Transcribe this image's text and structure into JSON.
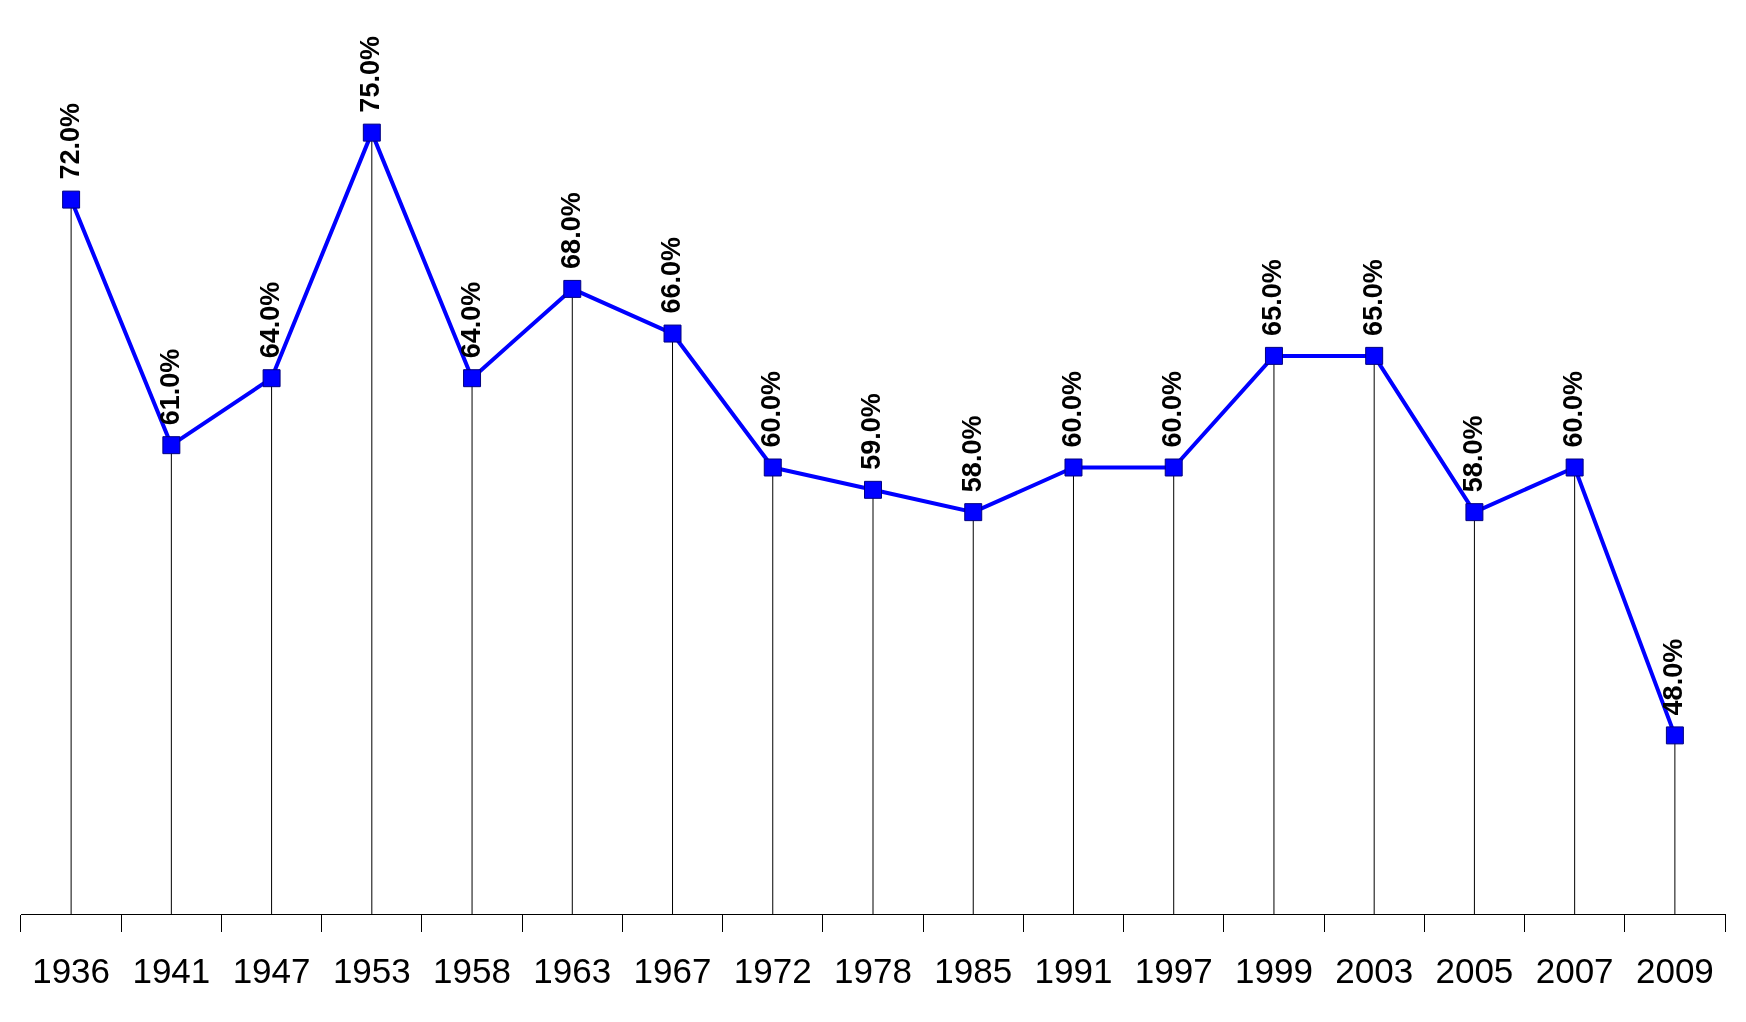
{
  "chart_data": {
    "type": "line",
    "categories": [
      "1936",
      "1941",
      "1947",
      "1953",
      "1958",
      "1963",
      "1967",
      "1972",
      "1978",
      "1985",
      "1991",
      "1997",
      "1999",
      "2003",
      "2005",
      "2007",
      "2009"
    ],
    "series": [
      {
        "color": "#0000ff",
        "values": [
          72,
          61,
          64,
          75,
          64,
          68,
          66,
          60,
          59,
          58,
          60,
          60,
          65,
          65,
          58,
          60,
          48
        ],
        "value_labels": [
          "72.0%",
          "61.0%",
          "64.0%",
          "75.0%",
          "64.0%",
          "68.0%",
          "66.0%",
          "60.0%",
          "59.0%",
          "58.0%",
          "60.0%",
          "60.0%",
          "65.0%",
          "65.0%",
          "58.0%",
          "60.0%",
          "48.0%"
        ]
      }
    ],
    "marker": "square",
    "line_style": "solid",
    "grid": "x"
  }
}
